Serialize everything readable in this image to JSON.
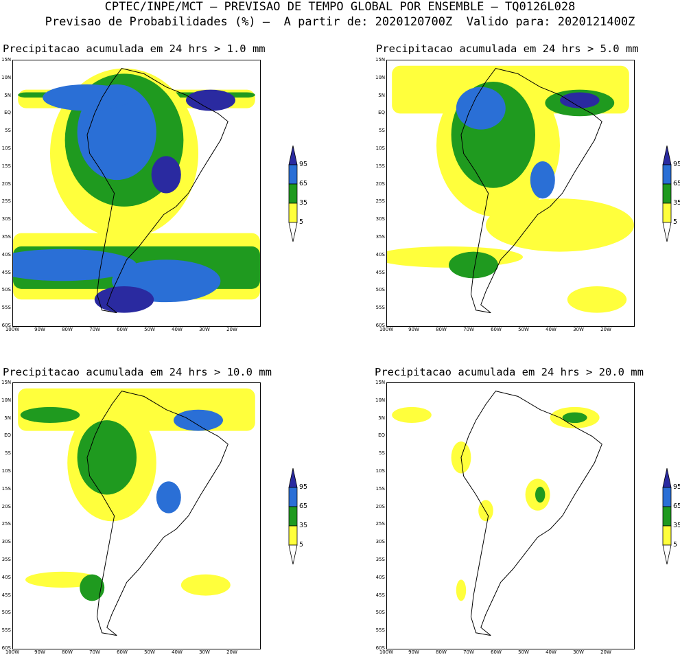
{
  "header": {
    "line1": "CPTEC/INPE/MCT — PREVISAO DE TEMPO GLOBAL POR ENSEMBLE — TQ0126L028",
    "line2": "Previsao de Probabilidades (%) —  A partir de: 2020120700Z  Valido para: 2020121400Z"
  },
  "panels": [
    {
      "title": "Precipitacao acumulada em 24 hrs > 1.0 mm"
    },
    {
      "title": "Precipitacao acumulada em 24 hrs > 5.0 mm"
    },
    {
      "title": "Precipitacao acumulada em 24 hrs > 10.0 mm"
    },
    {
      "title": "Precipitacao acumulada em 24 hrs > 20.0 mm"
    }
  ],
  "axes": {
    "lat_labels": [
      "15N",
      "10N",
      "5N",
      "EQ",
      "5S",
      "10S",
      "15S",
      "20S",
      "25S",
      "30S",
      "35S",
      "40S",
      "45S",
      "50S",
      "55S",
      "60S"
    ],
    "lon_labels": [
      "100W",
      "90W",
      "80W",
      "70W",
      "60W",
      "50W",
      "40W",
      "30W",
      "20W"
    ]
  },
  "legend": {
    "labels": [
      "95",
      "65",
      "35",
      "5"
    ],
    "colors": {
      "c95": "#2a2aa0",
      "c65": "#2a6fd6",
      "c35": "#1f9a1f",
      "c5": "#ffff3c",
      "land_line": "#000000"
    }
  },
  "colors": {
    "dark_blue": "#2a2aa0",
    "blue": "#2a6fd6",
    "green": "#1f9a1f",
    "yellow": "#ffff3c"
  }
}
